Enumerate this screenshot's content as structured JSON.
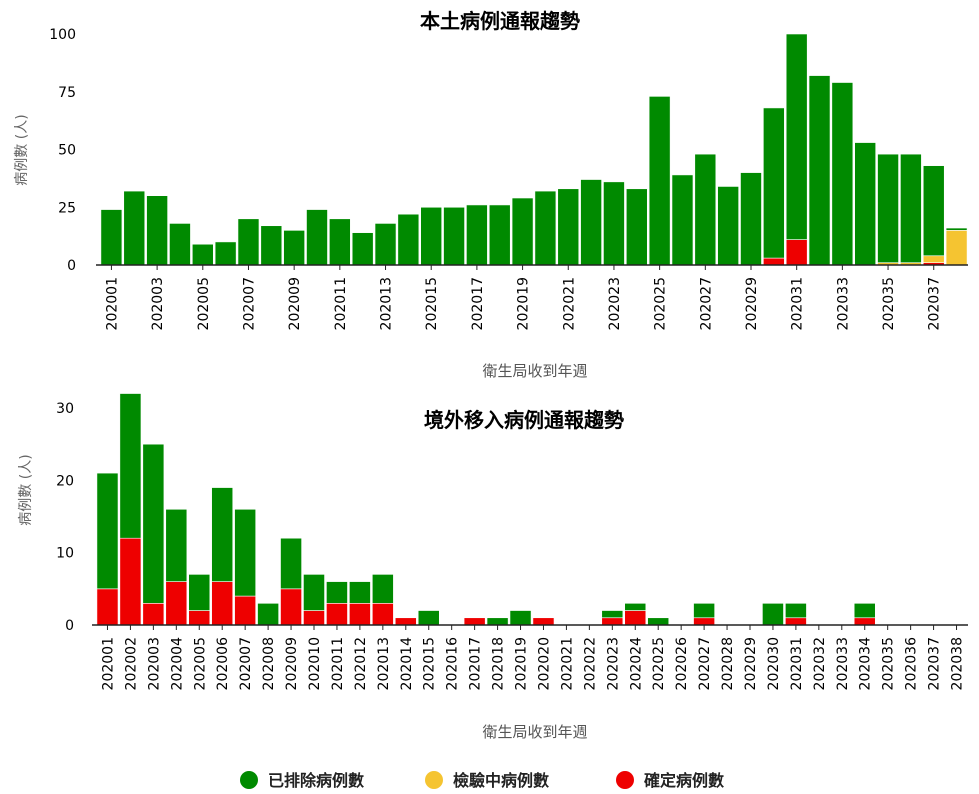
{
  "chart_data": [
    {
      "type": "bar",
      "stacked": true,
      "title": "本土病例通報趨勢",
      "xlabel": "衛生局收到年週",
      "ylabel": "病例數 (人)",
      "ylim": [
        0,
        100
      ],
      "yticks": [
        0,
        25,
        50,
        75,
        100
      ],
      "categories": [
        "202001",
        "202002",
        "202003",
        "202004",
        "202005",
        "202006",
        "202007",
        "202008",
        "202009",
        "202010",
        "202011",
        "202012",
        "202013",
        "202014",
        "202015",
        "202016",
        "202017",
        "202018",
        "202019",
        "202020",
        "202021",
        "202022",
        "202023",
        "202024",
        "202025",
        "202026",
        "202027",
        "202028",
        "202029",
        "202030",
        "202031",
        "202032",
        "202033",
        "202034",
        "202035",
        "202036",
        "202037",
        "202038"
      ],
      "tick_labels": [
        "202001",
        "202003",
        "202005",
        "202007",
        "202009",
        "202011",
        "202013",
        "202015",
        "202017",
        "202019",
        "202021",
        "202023",
        "202025",
        "202027",
        "202029",
        "202031",
        "202033",
        "202035",
        "202037"
      ],
      "series": [
        {
          "key": "confirmed",
          "values": [
            0,
            0,
            0,
            0,
            0,
            0,
            0,
            0,
            0,
            0,
            0,
            0,
            0,
            0,
            0,
            0,
            0,
            0,
            0,
            0,
            0,
            0,
            0,
            0,
            0,
            0,
            0,
            0,
            0,
            3,
            11,
            0,
            0,
            0,
            0,
            0,
            1,
            0
          ]
        },
        {
          "key": "testing",
          "values": [
            0,
            0,
            0,
            0,
            0,
            0,
            0,
            0,
            0,
            0,
            0,
            0,
            0,
            0,
            0,
            0,
            0,
            0,
            0,
            0,
            0,
            0,
            0,
            0,
            0,
            0,
            0,
            0,
            0,
            0,
            0,
            0,
            0,
            0,
            1,
            1,
            3,
            15
          ]
        },
        {
          "key": "excluded",
          "values": [
            24,
            32,
            30,
            18,
            9,
            10,
            20,
            17,
            15,
            24,
            20,
            14,
            18,
            22,
            25,
            25,
            26,
            26,
            29,
            32,
            33,
            37,
            36,
            33,
            73,
            39,
            48,
            34,
            40,
            65,
            89,
            82,
            79,
            53,
            47,
            47,
            39,
            1
          ]
        }
      ]
    },
    {
      "type": "bar",
      "stacked": true,
      "title": "境外移入病例通報趨勢",
      "xlabel": "衛生局收到年週",
      "ylabel": "病例數 (人)",
      "ylim": [
        0,
        30
      ],
      "yticks": [
        0,
        10,
        20,
        30
      ],
      "categories": [
        "202001",
        "202002",
        "202003",
        "202004",
        "202005",
        "202006",
        "202007",
        "202008",
        "202009",
        "202010",
        "202011",
        "202012",
        "202013",
        "202014",
        "202015",
        "202016",
        "202017",
        "202018",
        "202019",
        "202020",
        "202021",
        "202022",
        "202023",
        "202024",
        "202025",
        "202026",
        "202027",
        "202028",
        "202029",
        "202030",
        "202031",
        "202032",
        "202033",
        "202034",
        "202035",
        "202036",
        "202037",
        "202038"
      ],
      "tick_labels": [
        "202001",
        "202002",
        "202003",
        "202004",
        "202005",
        "202006",
        "202007",
        "202008",
        "202009",
        "202010",
        "202011",
        "202012",
        "202013",
        "202014",
        "202015",
        "202016",
        "202017",
        "202018",
        "202019",
        "202020",
        "202021",
        "202022",
        "202023",
        "202024",
        "202025",
        "202026",
        "202027",
        "202028",
        "202029",
        "202030",
        "202031",
        "202032",
        "202033",
        "202034",
        "202035",
        "202036",
        "202037",
        "202038"
      ],
      "series": [
        {
          "key": "confirmed",
          "values": [
            5,
            12,
            3,
            6,
            2,
            6,
            4,
            0,
            5,
            2,
            3,
            3,
            3,
            1,
            0,
            0,
            1,
            0,
            0,
            1,
            0,
            0,
            1,
            2,
            0,
            0,
            1,
            0,
            0,
            0,
            1,
            0,
            0,
            1,
            0,
            0,
            0,
            0
          ]
        },
        {
          "key": "testing",
          "values": [
            0,
            0,
            0,
            0,
            0,
            0,
            0,
            0,
            0,
            0,
            0,
            0,
            0,
            0,
            0,
            0,
            0,
            0,
            0,
            0,
            0,
            0,
            0,
            0,
            0,
            0,
            0,
            0,
            0,
            0,
            0,
            0,
            0,
            0,
            0,
            0,
            0,
            0
          ]
        },
        {
          "key": "excluded",
          "values": [
            16,
            20,
            22,
            10,
            5,
            13,
            12,
            3,
            7,
            5,
            3,
            3,
            4,
            0,
            2,
            0,
            0,
            1,
            2,
            0,
            0,
            0,
            1,
            1,
            1,
            0,
            2,
            0,
            0,
            3,
            2,
            0,
            0,
            2,
            0,
            0,
            0,
            0
          ]
        }
      ]
    }
  ],
  "legend": [
    {
      "key": "excluded",
      "label": "已排除病例數",
      "color": "#008a00"
    },
    {
      "key": "testing",
      "label": "檢驗中病例數",
      "color": "#f5c431"
    },
    {
      "key": "confirmed",
      "label": "確定病例數",
      "color": "#ee0000"
    }
  ]
}
